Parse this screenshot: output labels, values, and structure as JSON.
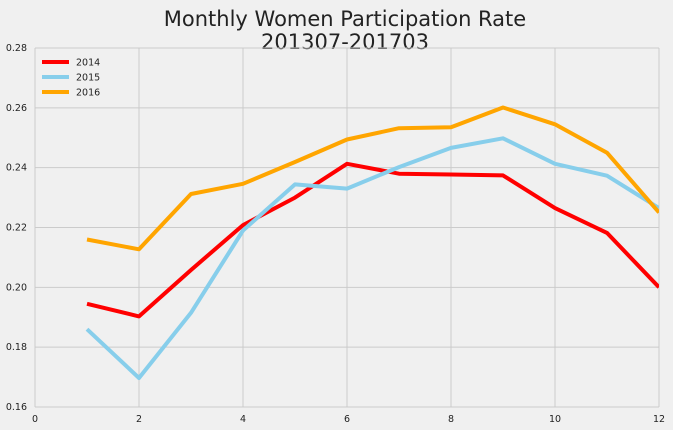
{
  "chart_data": {
    "type": "line",
    "title": "Monthly Women Participation Rate",
    "subtitle": "201307-201703",
    "xlabel": "",
    "ylabel": "",
    "xlim": [
      0,
      12
    ],
    "ylim": [
      0.16,
      0.28
    ],
    "x_ticks": [
      0,
      2,
      4,
      6,
      8,
      10,
      12
    ],
    "x_tick_labels": [
      "0",
      "2",
      "4",
      "6",
      "8",
      "10",
      "12"
    ],
    "y_ticks": [
      0.16,
      0.18,
      0.2,
      0.22,
      0.24,
      0.26,
      0.28
    ],
    "y_tick_labels": [
      "0.16",
      "0.18",
      "0.20",
      "0.22",
      "0.24",
      "0.26",
      "0.28"
    ],
    "grid": true,
    "legend_position": "top-left",
    "x": [
      1,
      2,
      3,
      4,
      5,
      6,
      7,
      8,
      9,
      10,
      11,
      12
    ],
    "series": [
      {
        "name": "2014",
        "color": "#ff0000",
        "values": [
          0.1945,
          0.1903,
          0.2058,
          0.2208,
          0.23,
          0.2413,
          0.238,
          0.2377,
          0.2374,
          0.2265,
          0.2182,
          0.2
        ]
      },
      {
        "name": "2015",
        "color": "#87ceeb",
        "values": [
          0.186,
          0.1697,
          0.1915,
          0.219,
          0.2344,
          0.233,
          0.2402,
          0.2466,
          0.2498,
          0.2413,
          0.2373,
          0.2265
        ]
      },
      {
        "name": "2016",
        "color": "#ffa500",
        "values": [
          0.216,
          0.2127,
          0.2312,
          0.2346,
          0.2419,
          0.2494,
          0.2532,
          0.2535,
          0.2601,
          0.2545,
          0.245,
          0.225
        ]
      }
    ]
  }
}
